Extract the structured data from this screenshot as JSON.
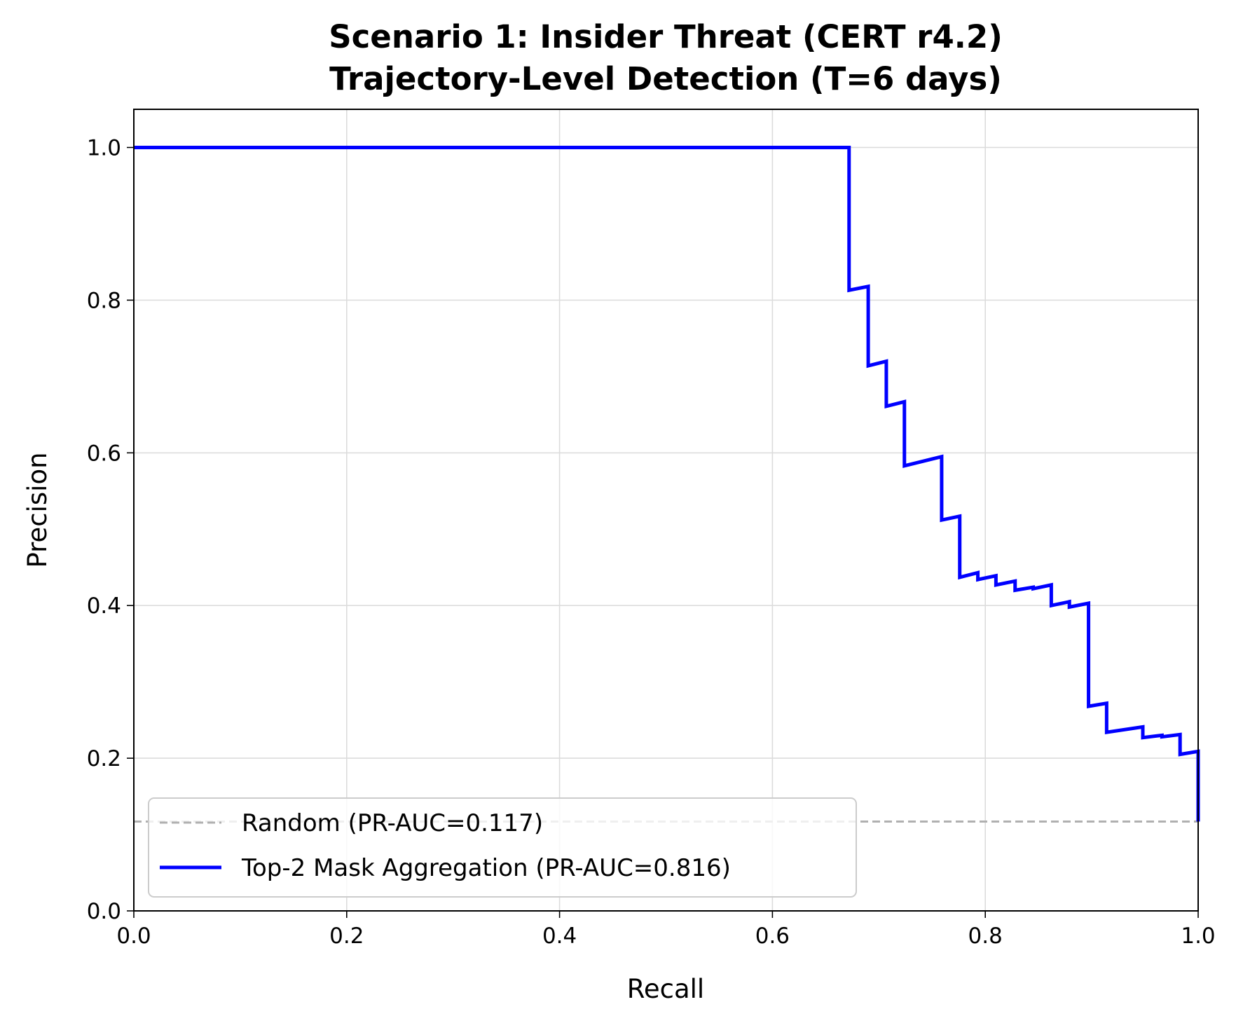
{
  "chart_data": {
    "type": "line",
    "title": "Scenario 1: Insider Threat (CERT r4.2)\nTrajectory-Level Detection (T=6 days)",
    "title_lines": [
      "Scenario 1: Insider Threat (CERT r4.2)",
      "Trajectory-Level Detection (T=6 days)"
    ],
    "xlabel": "Recall",
    "ylabel": "Precision",
    "xlim": [
      0.0,
      1.0
    ],
    "ylim": [
      0.0,
      1.05
    ],
    "xticks": [
      0.0,
      0.2,
      0.4,
      0.6,
      0.8,
      1.0
    ],
    "xtick_labels": [
      "0.0",
      "0.2",
      "0.4",
      "0.6",
      "0.8",
      "1.0"
    ],
    "yticks": [
      0.0,
      0.2,
      0.4,
      0.6,
      0.8,
      1.0
    ],
    "ytick_labels": [
      "0.0",
      "0.2",
      "0.4",
      "0.6",
      "0.8",
      "1.0"
    ],
    "grid": true,
    "legend_position": "lower-left",
    "series": [
      {
        "name": "Random (PR-AUC=0.117)",
        "style": "dashed",
        "color": "#b0b0b0",
        "x": [
          0.0,
          1.0
        ],
        "y": [
          0.117,
          0.117
        ]
      },
      {
        "name": "Top-2 Mask Aggregation (PR-AUC=0.816)",
        "style": "solid",
        "color": "#0000ff",
        "x": [
          0.0,
          0.672,
          0.672,
          0.69,
          0.69,
          0.707,
          0.707,
          0.724,
          0.724,
          0.759,
          0.759,
          0.776,
          0.776,
          0.793,
          0.793,
          0.81,
          0.81,
          0.828,
          0.828,
          0.845,
          0.845,
          0.862,
          0.862,
          0.879,
          0.879,
          0.897,
          0.897,
          0.914,
          0.914,
          0.948,
          0.948,
          0.966,
          0.966,
          0.983,
          0.983,
          1.0,
          1.0
        ],
        "y": [
          1.0,
          1.0,
          0.813,
          0.818,
          0.714,
          0.72,
          0.661,
          0.667,
          0.583,
          0.595,
          0.512,
          0.517,
          0.437,
          0.443,
          0.434,
          0.439,
          0.427,
          0.432,
          0.42,
          0.424,
          0.422,
          0.427,
          0.4,
          0.405,
          0.398,
          0.403,
          0.268,
          0.272,
          0.234,
          0.241,
          0.227,
          0.23,
          0.228,
          0.231,
          0.205,
          0.209,
          0.117
        ]
      }
    ]
  }
}
